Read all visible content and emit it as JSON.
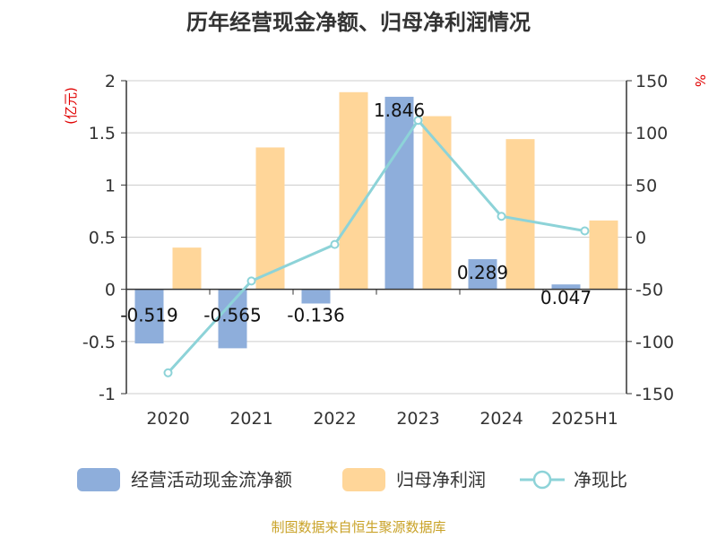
{
  "chart_data": {
    "type": "bar",
    "title": "历年经营现金净额、归母净利润情况",
    "categories": [
      "2020",
      "2021",
      "2022",
      "2023",
      "2024",
      "2025H1"
    ],
    "left_axis": {
      "unit": "(亿元)",
      "ylim": [
        -1,
        2
      ],
      "ticks": [
        -1,
        -0.5,
        0,
        0.5,
        1,
        1.5,
        2
      ],
      "tick_labels": [
        "-1",
        "-0.5",
        "0",
        "0.5",
        "1",
        "1.5",
        "2"
      ]
    },
    "right_axis": {
      "unit": "%",
      "ylim": [
        -150,
        150
      ],
      "ticks": [
        -150,
        -100,
        -50,
        0,
        50,
        100,
        150
      ],
      "tick_labels": [
        "-150",
        "-100",
        "-50",
        "0",
        "50",
        "100",
        "150"
      ]
    },
    "series": [
      {
        "name": "经营活动现金流净额",
        "kind": "bar",
        "axis": "left",
        "color": "#8eaedb",
        "values": [
          -0.519,
          -0.565,
          -0.136,
          1.846,
          0.289,
          0.047
        ],
        "labels": [
          "-0.519",
          "-0.565",
          "-0.136",
          "1.846",
          "0.289",
          "0.047"
        ]
      },
      {
        "name": "归母净利润",
        "kind": "bar",
        "axis": "left",
        "color": "#ffd699",
        "values": [
          0.4,
          1.36,
          1.89,
          1.66,
          1.44,
          0.66
        ]
      },
      {
        "name": "净现比",
        "kind": "line",
        "axis": "right",
        "color": "#8dd3d8",
        "values": [
          -130,
          -42,
          -7,
          112,
          20,
          6
        ]
      }
    ],
    "grid": true,
    "legend_position": "bottom",
    "source": "制图数据来自恒生聚源数据库"
  }
}
